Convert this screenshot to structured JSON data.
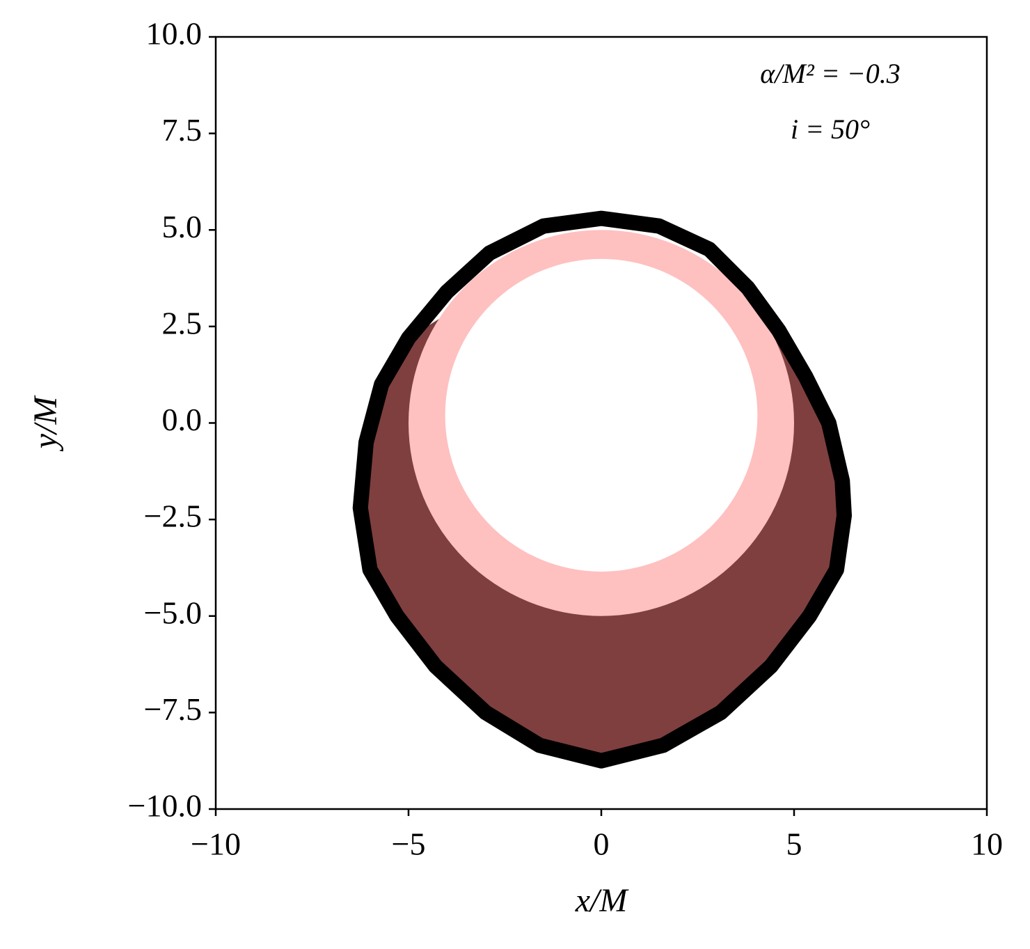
{
  "chart_data": {
    "type": "shapes",
    "xlabel": "x/M",
    "ylabel": "y/M",
    "annotations": [
      "α/M² = −0.3",
      "i = 50°"
    ],
    "xlim": [
      -10,
      10
    ],
    "ylim": [
      -10,
      10
    ],
    "xticks": [
      {
        "value": -10,
        "label": "−10"
      },
      {
        "value": -5,
        "label": "−5"
      },
      0,
      5,
      10
    ],
    "yticks": [
      {
        "value": 10,
        "label": "10.0"
      },
      7.5,
      {
        "value": 5,
        "label": "5.0"
      },
      2.5,
      {
        "value": 0,
        "label": "0.0"
      },
      {
        "value": -2.5,
        "label": "−2.5"
      },
      {
        "value": -5,
        "label": "−5.0"
      },
      {
        "value": -7.5,
        "label": "−7.5"
      },
      {
        "value": -10,
        "label": "−10.0"
      }
    ],
    "series": [
      {
        "shape": "polygon",
        "fill": true,
        "color": "#7f3f3f",
        "x": [
          4.2,
          4.6,
          5.3,
          5.9,
          6.25,
          6.3,
          6.1,
          5.4,
          4.4,
          3.1,
          1.6,
          0,
          -1.6,
          -3.0,
          -4.3,
          -5.3,
          -6.0,
          -6.25,
          -6.1,
          -5.7,
          -5.0,
          -4.2
        ],
        "y": [
          2.7,
          2.4,
          1.2,
          0,
          -1.5,
          -2.4,
          -3.8,
          -5.0,
          -6.3,
          -7.5,
          -8.35,
          -8.75,
          -8.35,
          -7.5,
          -6.3,
          -5.0,
          -3.8,
          -2.2,
          -0.5,
          1.0,
          2.2,
          2.7
        ]
      },
      {
        "shape": "circle",
        "fill": true,
        "color": "#ffc0c0",
        "center": [
          0,
          0
        ],
        "radius": 5.0
      },
      {
        "shape": "circle",
        "fill": true,
        "color": "#ffffff",
        "center": [
          0,
          0.2
        ],
        "radius": 4.05
      },
      {
        "shape": "polygon",
        "fill": false,
        "color": "#000000",
        "x": [
          0,
          1.5,
          2.8,
          3.8,
          4.6,
          5.3,
          5.9,
          6.25,
          6.3,
          6.1,
          5.4,
          4.4,
          3.1,
          1.6,
          0,
          -1.6,
          -3.0,
          -4.3,
          -5.3,
          -6.0,
          -6.25,
          -6.1,
          -5.7,
          -5.0,
          -4.0,
          -2.9,
          -1.5
        ],
        "y": [
          5.3,
          5.1,
          4.5,
          3.5,
          2.4,
          1.2,
          0,
          -1.5,
          -2.4,
          -3.8,
          -5.0,
          -6.3,
          -7.5,
          -8.35,
          -8.75,
          -8.35,
          -7.5,
          -6.3,
          -5.0,
          -3.8,
          -2.2,
          -0.5,
          1.0,
          2.2,
          3.4,
          4.4,
          5.1
        ]
      }
    ]
  }
}
